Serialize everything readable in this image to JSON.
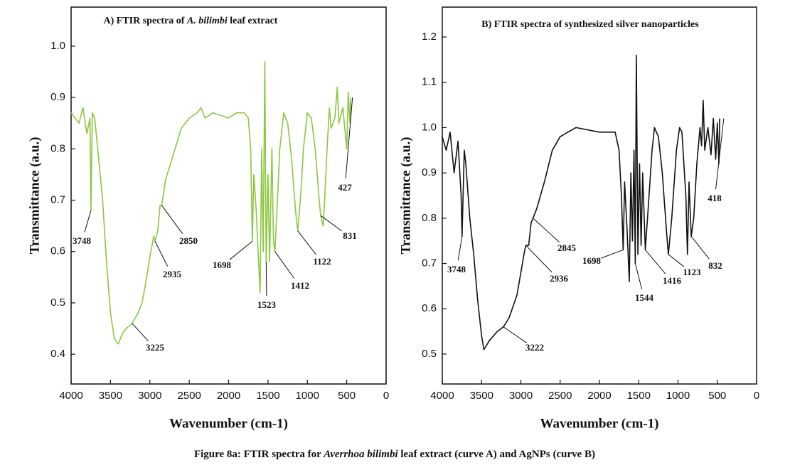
{
  "chart_data": [
    {
      "type": "line",
      "title": [
        "A) FTIR spectra of ",
        "A. bilimbi",
        " leaf extract"
      ],
      "x_label": "Wavenumber (cm-1)",
      "y_label": "Transmittance (a.u.)",
      "xlim": [
        4000,
        0
      ],
      "xticks": [
        4000,
        3500,
        3000,
        2500,
        2000,
        1500,
        1000,
        500,
        0
      ],
      "ylim": [
        0.342,
        1.076
      ],
      "yticks": [
        0.4,
        0.5,
        0.6,
        0.7,
        0.8,
        0.9,
        {
          "value": 1,
          "label": "1.0"
        }
      ],
      "color": "#8cc63f",
      "x": [
        4000,
        3900,
        3850,
        3800,
        3760,
        3748,
        3730,
        3700,
        3650,
        3600,
        3550,
        3500,
        3450,
        3400,
        3350,
        3300,
        3225,
        3150,
        3100,
        3050,
        3000,
        2950,
        2935,
        2900,
        2870,
        2850,
        2800,
        2700,
        2600,
        2500,
        2400,
        2350,
        2300,
        2200,
        2000,
        1900,
        1800,
        1750,
        1720,
        1698,
        1680,
        1650,
        1620,
        1600,
        1580,
        1560,
        1540,
        1523,
        1500,
        1480,
        1450,
        1430,
        1412,
        1380,
        1350,
        1300,
        1250,
        1200,
        1150,
        1122,
        1080,
        1050,
        1000,
        950,
        900,
        850,
        831,
        800,
        780,
        750,
        720,
        700,
        650,
        620,
        600,
        550,
        500,
        480,
        460,
        450
      ],
      "values": [
        0.87,
        0.85,
        0.88,
        0.83,
        0.86,
        0.68,
        0.87,
        0.86,
        0.78,
        0.7,
        0.58,
        0.48,
        0.43,
        0.42,
        0.44,
        0.45,
        0.46,
        0.48,
        0.5,
        0.54,
        0.59,
        0.63,
        0.62,
        0.64,
        0.69,
        0.69,
        0.74,
        0.79,
        0.84,
        0.86,
        0.87,
        0.88,
        0.86,
        0.87,
        0.86,
        0.87,
        0.87,
        0.86,
        0.8,
        0.62,
        0.75,
        0.68,
        0.58,
        0.52,
        0.8,
        0.6,
        0.97,
        0.58,
        0.75,
        0.58,
        0.8,
        0.62,
        0.6,
        0.7,
        0.8,
        0.87,
        0.85,
        0.78,
        0.68,
        0.64,
        0.72,
        0.8,
        0.87,
        0.86,
        0.8,
        0.7,
        0.67,
        0.65,
        0.7,
        0.8,
        0.88,
        0.84,
        0.86,
        0.92,
        0.85,
        0.88,
        0.8,
        0.91,
        0.85,
        0.9
      ],
      "annotations": [
        "3748",
        "3225",
        "2935",
        "2850",
        "1698",
        "1523",
        "1412",
        "1122",
        "831",
        "427"
      ]
    },
    {
      "type": "line",
      "title": [
        "B) FTIR spectra of synthesized silver nanoparticles"
      ],
      "x_label": "Wavenumber (cm-1)",
      "y_label": "Transmittance (a.u.)",
      "xlim": [
        4000,
        0
      ],
      "xticks": [
        4000,
        3500,
        3000,
        2500,
        2000,
        1500,
        1000,
        500,
        0
      ],
      "ylim": [
        0.434,
        1.266
      ],
      "yticks": [
        0.5,
        0.6,
        0.7,
        0.8,
        0.9,
        {
          "value": 1,
          "label": "1.0"
        },
        1.1,
        1.2
      ],
      "color": "#111111",
      "x": [
        4000,
        3950,
        3900,
        3850,
        3800,
        3760,
        3748,
        3720,
        3700,
        3650,
        3600,
        3550,
        3500,
        3470,
        3400,
        3300,
        3222,
        3150,
        3050,
        3000,
        2950,
        2936,
        2900,
        2870,
        2845,
        2800,
        2700,
        2600,
        2500,
        2400,
        2300,
        2000,
        1800,
        1750,
        1720,
        1698,
        1680,
        1650,
        1620,
        1600,
        1580,
        1560,
        1544,
        1530,
        1510,
        1490,
        1470,
        1450,
        1416,
        1380,
        1330,
        1300,
        1250,
        1200,
        1150,
        1123,
        1080,
        1020,
        980,
        950,
        900,
        880,
        860,
        832,
        800,
        760,
        720,
        700,
        680,
        660,
        620,
        580,
        550,
        520,
        500,
        480,
        470
      ],
      "values": [
        0.98,
        0.95,
        0.99,
        0.9,
        0.97,
        0.85,
        0.76,
        0.95,
        0.92,
        0.8,
        0.72,
        0.62,
        0.54,
        0.51,
        0.53,
        0.55,
        0.56,
        0.58,
        0.63,
        0.68,
        0.73,
        0.74,
        0.74,
        0.79,
        0.8,
        0.82,
        0.88,
        0.95,
        0.98,
        0.99,
        1.0,
        0.99,
        0.99,
        0.95,
        0.85,
        0.73,
        0.88,
        0.78,
        0.66,
        0.9,
        0.75,
        0.95,
        0.7,
        1.16,
        0.72,
        0.92,
        0.74,
        0.9,
        0.73,
        0.82,
        0.95,
        1.0,
        0.98,
        0.9,
        0.78,
        0.72,
        0.8,
        0.95,
        1.0,
        0.99,
        0.85,
        0.72,
        0.88,
        0.76,
        0.8,
        0.92,
        1.0,
        0.96,
        1.06,
        0.95,
        1.0,
        0.94,
        1.02,
        0.93,
        1.01,
        0.92,
        1.02
      ],
      "annotations": [
        "3748",
        "3222",
        "2936",
        "2845",
        "1698",
        "1544",
        "1416",
        "1123",
        "832",
        "418"
      ]
    }
  ],
  "caption": [
    "Figure 8a: FTIR spectra for ",
    "Averrhoa bilimbi",
    " leaf extract (curve A) and AgNPs (curve B)"
  ]
}
